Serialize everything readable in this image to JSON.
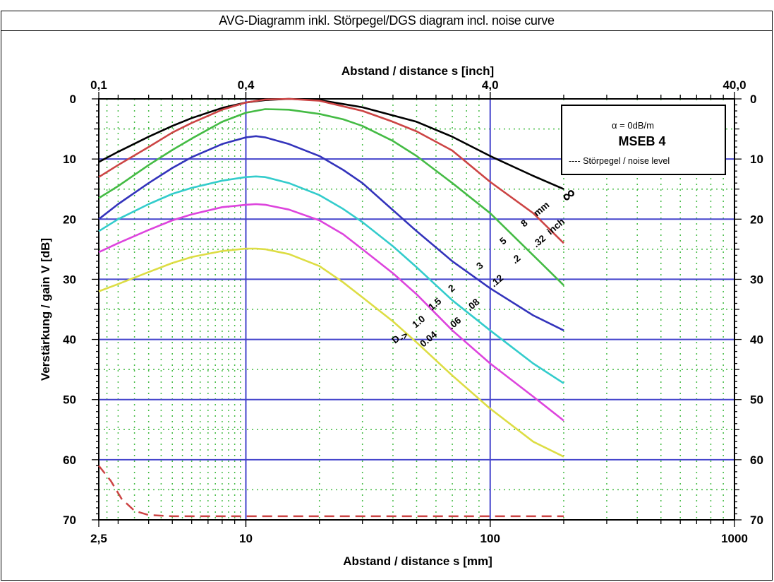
{
  "page_title": "AVG-Diagramm inkl. Störpegel/DGS diagram incl. noise curve",
  "chart_data": {
    "type": "line",
    "title": "AVG-Diagramm inkl. Störpegel/DGS diagram incl. noise curve",
    "xlabel": "Abstand / distance s [mm]",
    "x2label": "Abstand / distance s [inch]",
    "ylabel": "Verstärkung / gain V [dB]",
    "xscale": "log",
    "xlim": [
      2.5,
      1000
    ],
    "ylim": [
      0,
      70
    ],
    "y_inverted": true,
    "xticks": [
      "2,5",
      "10",
      "100",
      "1000"
    ],
    "x2ticks": [
      "0,1",
      "0,4",
      "4,0",
      "40,0"
    ],
    "yticks": [
      "0",
      "10",
      "20",
      "30",
      "40",
      "50",
      "60",
      "70"
    ],
    "grid": true,
    "legend": {
      "attenuation": "α = 0dB/m",
      "probe": "MSEB 4",
      "noise": "----   Störpegel / noise level"
    },
    "labels_mm": [
      "D",
      "1.0",
      "1.5",
      "2",
      "3",
      "5",
      "8",
      "mm"
    ],
    "labels_inch": [
      "0.04",
      ".06",
      ".08",
      ".12",
      ".2",
      ".32",
      "inch"
    ],
    "arrow_label": "->",
    "infinity_label": "∞",
    "series": [
      {
        "color": "#000000",
        "x": [
          2.5,
          3,
          4,
          5,
          6,
          8,
          10,
          12,
          15,
          20,
          30,
          50,
          70,
          100,
          150,
          200
        ],
        "y": [
          10.5,
          8.8,
          6.3,
          4.5,
          3.2,
          1.5,
          0.6,
          0.2,
          0,
          0.2,
          1.4,
          3.8,
          6.3,
          9.5,
          12.8,
          15
        ]
      },
      {
        "color": "#cc4444",
        "x": [
          2.5,
          3,
          4,
          5,
          6,
          8,
          10,
          12,
          15,
          20,
          30,
          40,
          50,
          70,
          100,
          150,
          200
        ],
        "y": [
          13,
          11,
          8,
          5.6,
          4,
          1.8,
          0.6,
          0.1,
          0,
          0.3,
          2,
          3.8,
          5.4,
          8.6,
          13.8,
          19,
          24
        ]
      },
      {
        "color": "#44bb44",
        "x": [
          2.5,
          3,
          4,
          5,
          6,
          8,
          10,
          12,
          15,
          20,
          25,
          30,
          40,
          50,
          70,
          100,
          150,
          200
        ],
        "y": [
          16.5,
          14.5,
          11,
          8.5,
          6.6,
          3.8,
          2.3,
          1.7,
          1.8,
          2.5,
          3.4,
          4.5,
          7,
          9.5,
          14,
          19,
          26,
          31
        ]
      },
      {
        "color": "#3333bb",
        "x": [
          2.5,
          3,
          4,
          5,
          6,
          8,
          10,
          11,
          12,
          15,
          20,
          25,
          30,
          40,
          50,
          70,
          100,
          150,
          200
        ],
        "y": [
          20,
          17.5,
          14,
          11.5,
          9.7,
          7.5,
          6.4,
          6.2,
          6.4,
          7.5,
          9.5,
          11.8,
          14,
          18.5,
          22,
          27,
          31.5,
          36,
          38.5
        ]
      },
      {
        "color": "#33cccc",
        "x": [
          2.5,
          3,
          4,
          5,
          6,
          8,
          10,
          11,
          12,
          15,
          20,
          25,
          30,
          40,
          50,
          70,
          100,
          150,
          200
        ],
        "y": [
          22,
          20,
          17.5,
          15.8,
          14.8,
          13.6,
          13,
          12.9,
          13,
          14,
          16,
          18.3,
          20.5,
          24.5,
          28,
          33.5,
          38.5,
          44,
          47.3
        ]
      },
      {
        "color": "#dd44dd",
        "x": [
          2.5,
          3,
          4,
          5,
          6,
          8,
          10,
          11,
          12,
          15,
          20,
          25,
          30,
          40,
          50,
          70,
          100,
          150,
          200
        ],
        "y": [
          25.5,
          24,
          21.8,
          20.2,
          19.2,
          18,
          17.6,
          17.5,
          17.6,
          18.4,
          20.2,
          22.5,
          25,
          29,
          32.5,
          38.5,
          44,
          49.5,
          53.5
        ]
      },
      {
        "color": "#dddd44",
        "x": [
          2.5,
          3,
          4,
          5,
          6,
          8,
          10,
          11,
          12,
          15,
          20,
          25,
          30,
          40,
          50,
          70,
          100,
          150,
          200
        ],
        "y": [
          32,
          30.8,
          28.8,
          27.3,
          26.3,
          25.3,
          24.9,
          24.9,
          25,
          25.8,
          27.8,
          30.5,
          33,
          37,
          40.5,
          46,
          51.5,
          57,
          59.5
        ]
      }
    ],
    "noise": {
      "color": "#cc4444",
      "x": [
        2.5,
        2.8,
        3.1,
        3.5,
        4,
        5,
        7,
        10,
        20,
        50,
        100,
        200
      ],
      "y": [
        61,
        63.5,
        66.5,
        68.5,
        69.2,
        69.4,
        69.4,
        69.4,
        69.4,
        69.4,
        69.4,
        69.4
      ]
    }
  }
}
